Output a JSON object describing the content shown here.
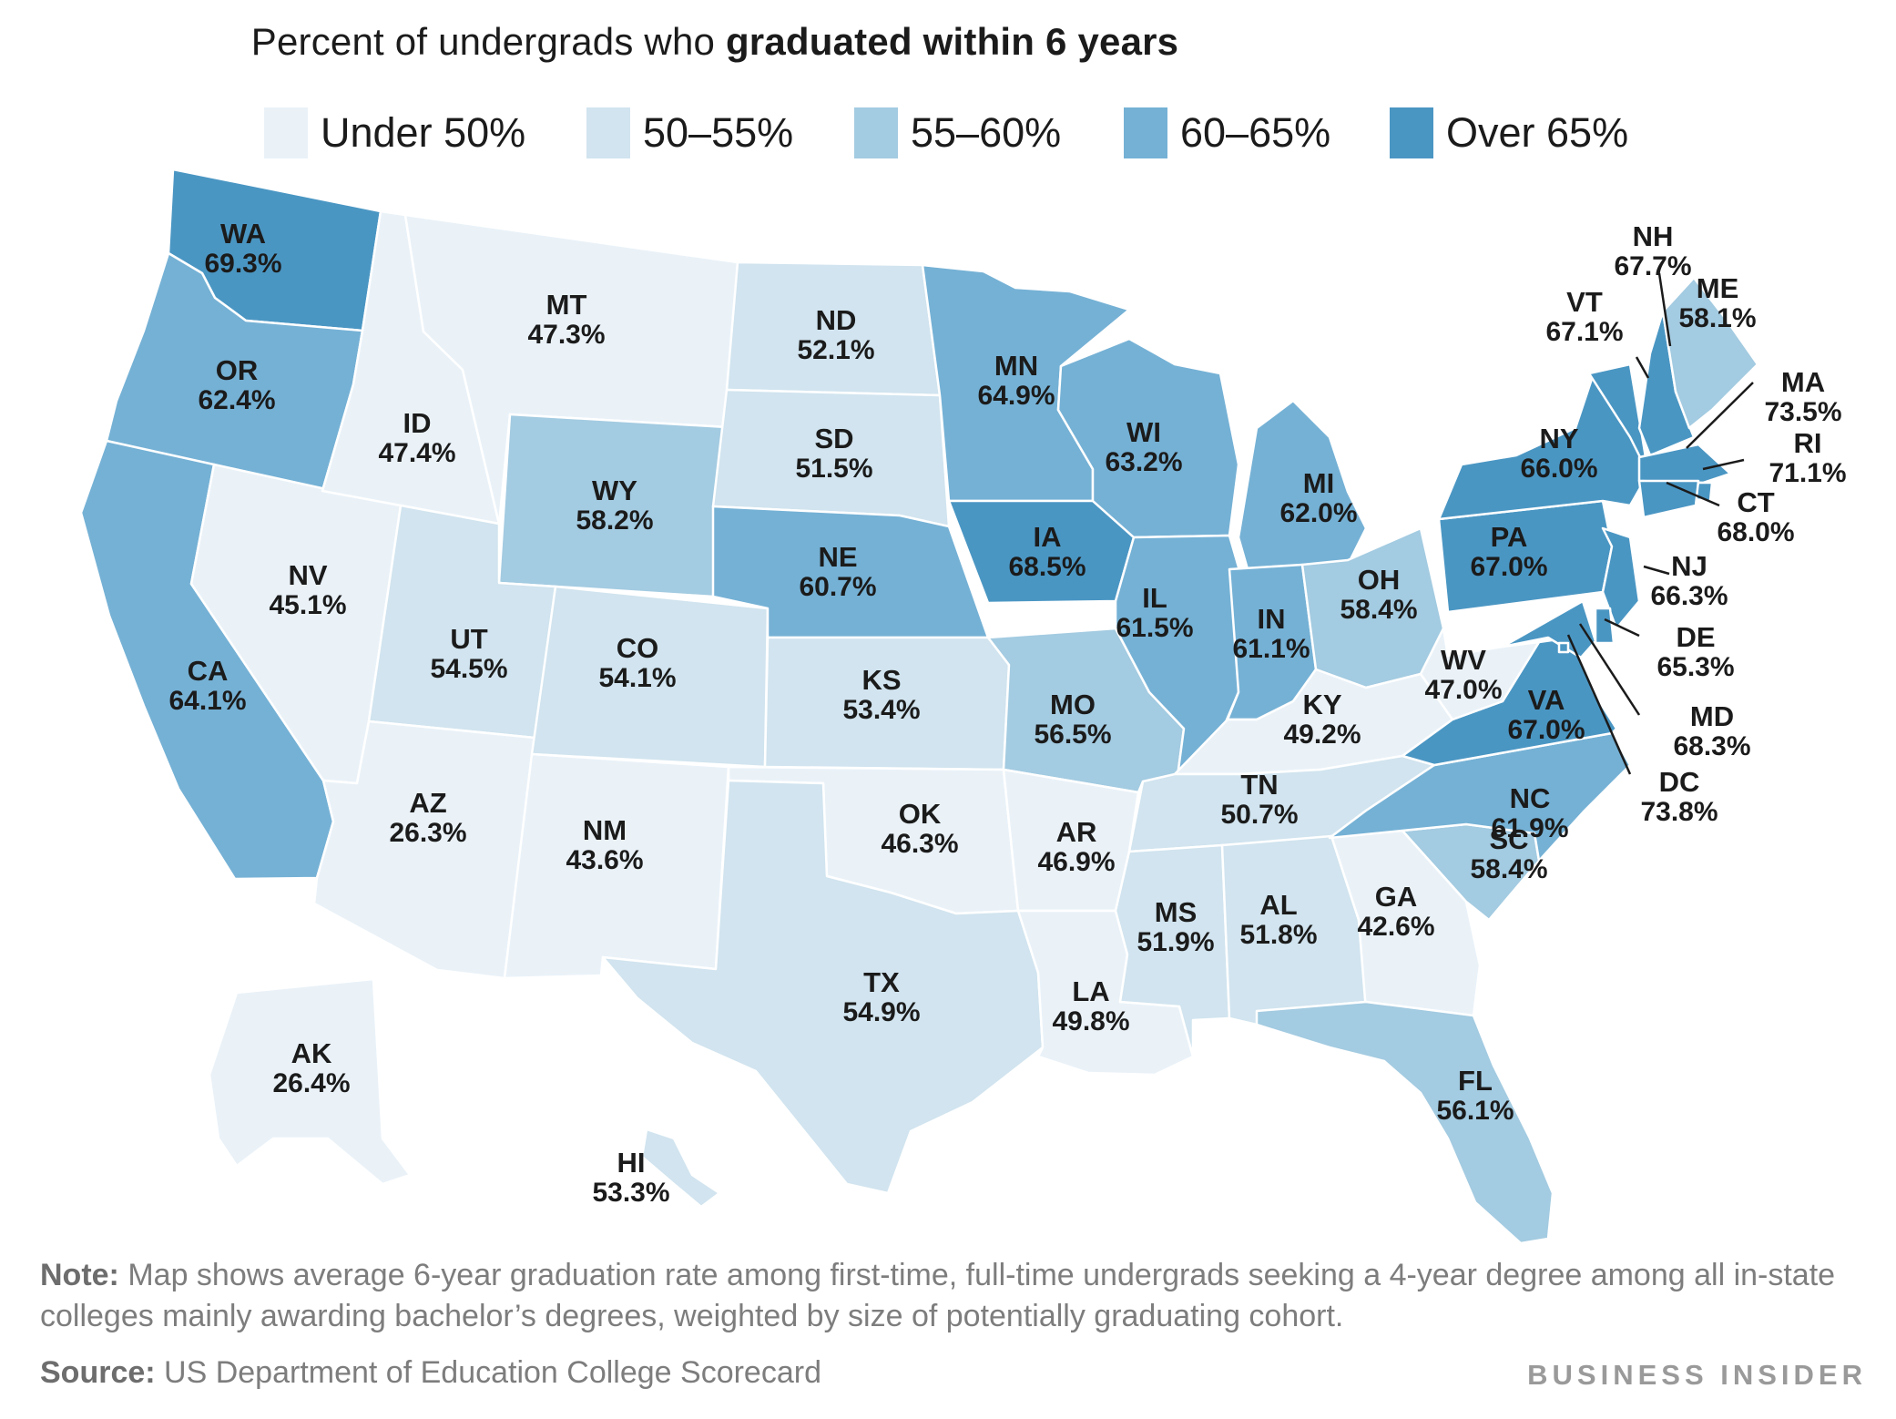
{
  "title": {
    "normal": "Percent of undergrads who ",
    "bold": "graduated within 6 years"
  },
  "legend": [
    {
      "label": "Under 50%",
      "color": "#eaf2f8"
    },
    {
      "label": "50–55%",
      "color": "#d1e4ef"
    },
    {
      "label": "55–60%",
      "color": "#a3cbe1"
    },
    {
      "label": "60–65%",
      "color": "#75b1d5"
    },
    {
      "label": "Over 65%",
      "color": "#4a96c3"
    }
  ],
  "states": [
    {
      "abbr": "WA",
      "value": "69.3%",
      "bin": 4
    },
    {
      "abbr": "OR",
      "value": "62.4%",
      "bin": 3
    },
    {
      "abbr": "CA",
      "value": "64.1%",
      "bin": 3
    },
    {
      "abbr": "NV",
      "value": "45.1%",
      "bin": 0
    },
    {
      "abbr": "ID",
      "value": "47.4%",
      "bin": 0
    },
    {
      "abbr": "MT",
      "value": "47.3%",
      "bin": 0
    },
    {
      "abbr": "WY",
      "value": "58.2%",
      "bin": 2
    },
    {
      "abbr": "UT",
      "value": "54.5%",
      "bin": 1
    },
    {
      "abbr": "AZ",
      "value": "26.3%",
      "bin": 0
    },
    {
      "abbr": "CO",
      "value": "54.1%",
      "bin": 1
    },
    {
      "abbr": "NM",
      "value": "43.6%",
      "bin": 0
    },
    {
      "abbr": "ND",
      "value": "52.1%",
      "bin": 1
    },
    {
      "abbr": "SD",
      "value": "51.5%",
      "bin": 1
    },
    {
      "abbr": "NE",
      "value": "60.7%",
      "bin": 3
    },
    {
      "abbr": "KS",
      "value": "53.4%",
      "bin": 1
    },
    {
      "abbr": "OK",
      "value": "46.3%",
      "bin": 0
    },
    {
      "abbr": "TX",
      "value": "54.9%",
      "bin": 1
    },
    {
      "abbr": "MN",
      "value": "64.9%",
      "bin": 3
    },
    {
      "abbr": "IA",
      "value": "68.5%",
      "bin": 4
    },
    {
      "abbr": "MO",
      "value": "56.5%",
      "bin": 2
    },
    {
      "abbr": "AR",
      "value": "46.9%",
      "bin": 0
    },
    {
      "abbr": "LA",
      "value": "49.8%",
      "bin": 0
    },
    {
      "abbr": "WI",
      "value": "63.2%",
      "bin": 3
    },
    {
      "abbr": "IL",
      "value": "61.5%",
      "bin": 3
    },
    {
      "abbr": "MI",
      "value": "62.0%",
      "bin": 3
    },
    {
      "abbr": "IN",
      "value": "61.1%",
      "bin": 3
    },
    {
      "abbr": "OH",
      "value": "58.4%",
      "bin": 2
    },
    {
      "abbr": "KY",
      "value": "49.2%",
      "bin": 0
    },
    {
      "abbr": "TN",
      "value": "50.7%",
      "bin": 1
    },
    {
      "abbr": "MS",
      "value": "51.9%",
      "bin": 1
    },
    {
      "abbr": "AL",
      "value": "51.8%",
      "bin": 1
    },
    {
      "abbr": "GA",
      "value": "42.6%",
      "bin": 0
    },
    {
      "abbr": "FL",
      "value": "56.1%",
      "bin": 2
    },
    {
      "abbr": "SC",
      "value": "58.4%",
      "bin": 2
    },
    {
      "abbr": "NC",
      "value": "61.9%",
      "bin": 3
    },
    {
      "abbr": "VA",
      "value": "67.0%",
      "bin": 4
    },
    {
      "abbr": "WV",
      "value": "47.0%",
      "bin": 0
    },
    {
      "abbr": "PA",
      "value": "67.0%",
      "bin": 4
    },
    {
      "abbr": "NY",
      "value": "66.0%",
      "bin": 4
    },
    {
      "abbr": "VT",
      "value": "67.1%",
      "bin": 4
    },
    {
      "abbr": "NH",
      "value": "67.7%",
      "bin": 4
    },
    {
      "abbr": "ME",
      "value": "58.1%",
      "bin": 2
    },
    {
      "abbr": "MA",
      "value": "73.5%",
      "bin": 4
    },
    {
      "abbr": "RI",
      "value": "71.1%",
      "bin": 4
    },
    {
      "abbr": "CT",
      "value": "68.0%",
      "bin": 4
    },
    {
      "abbr": "NJ",
      "value": "66.3%",
      "bin": 4
    },
    {
      "abbr": "DE",
      "value": "65.3%",
      "bin": 4
    },
    {
      "abbr": "MD",
      "value": "68.3%",
      "bin": 4
    },
    {
      "abbr": "DC",
      "value": "73.8%",
      "bin": 4
    },
    {
      "abbr": "AK",
      "value": "26.4%",
      "bin": 0
    },
    {
      "abbr": "HI",
      "value": "53.3%",
      "bin": 1
    }
  ],
  "note": {
    "label": "Note:",
    "text": " Map shows average 6-year graduation rate among first-time, full-time undergrads seeking a 4-year degree among all in-state colleges mainly awarding bachelor’s degrees, weighted by size of potentially graduating cohort."
  },
  "source": {
    "label": "Source:",
    "text": " US Department of Education College Scorecard"
  },
  "brand": "BUSINESS INSIDER"
}
